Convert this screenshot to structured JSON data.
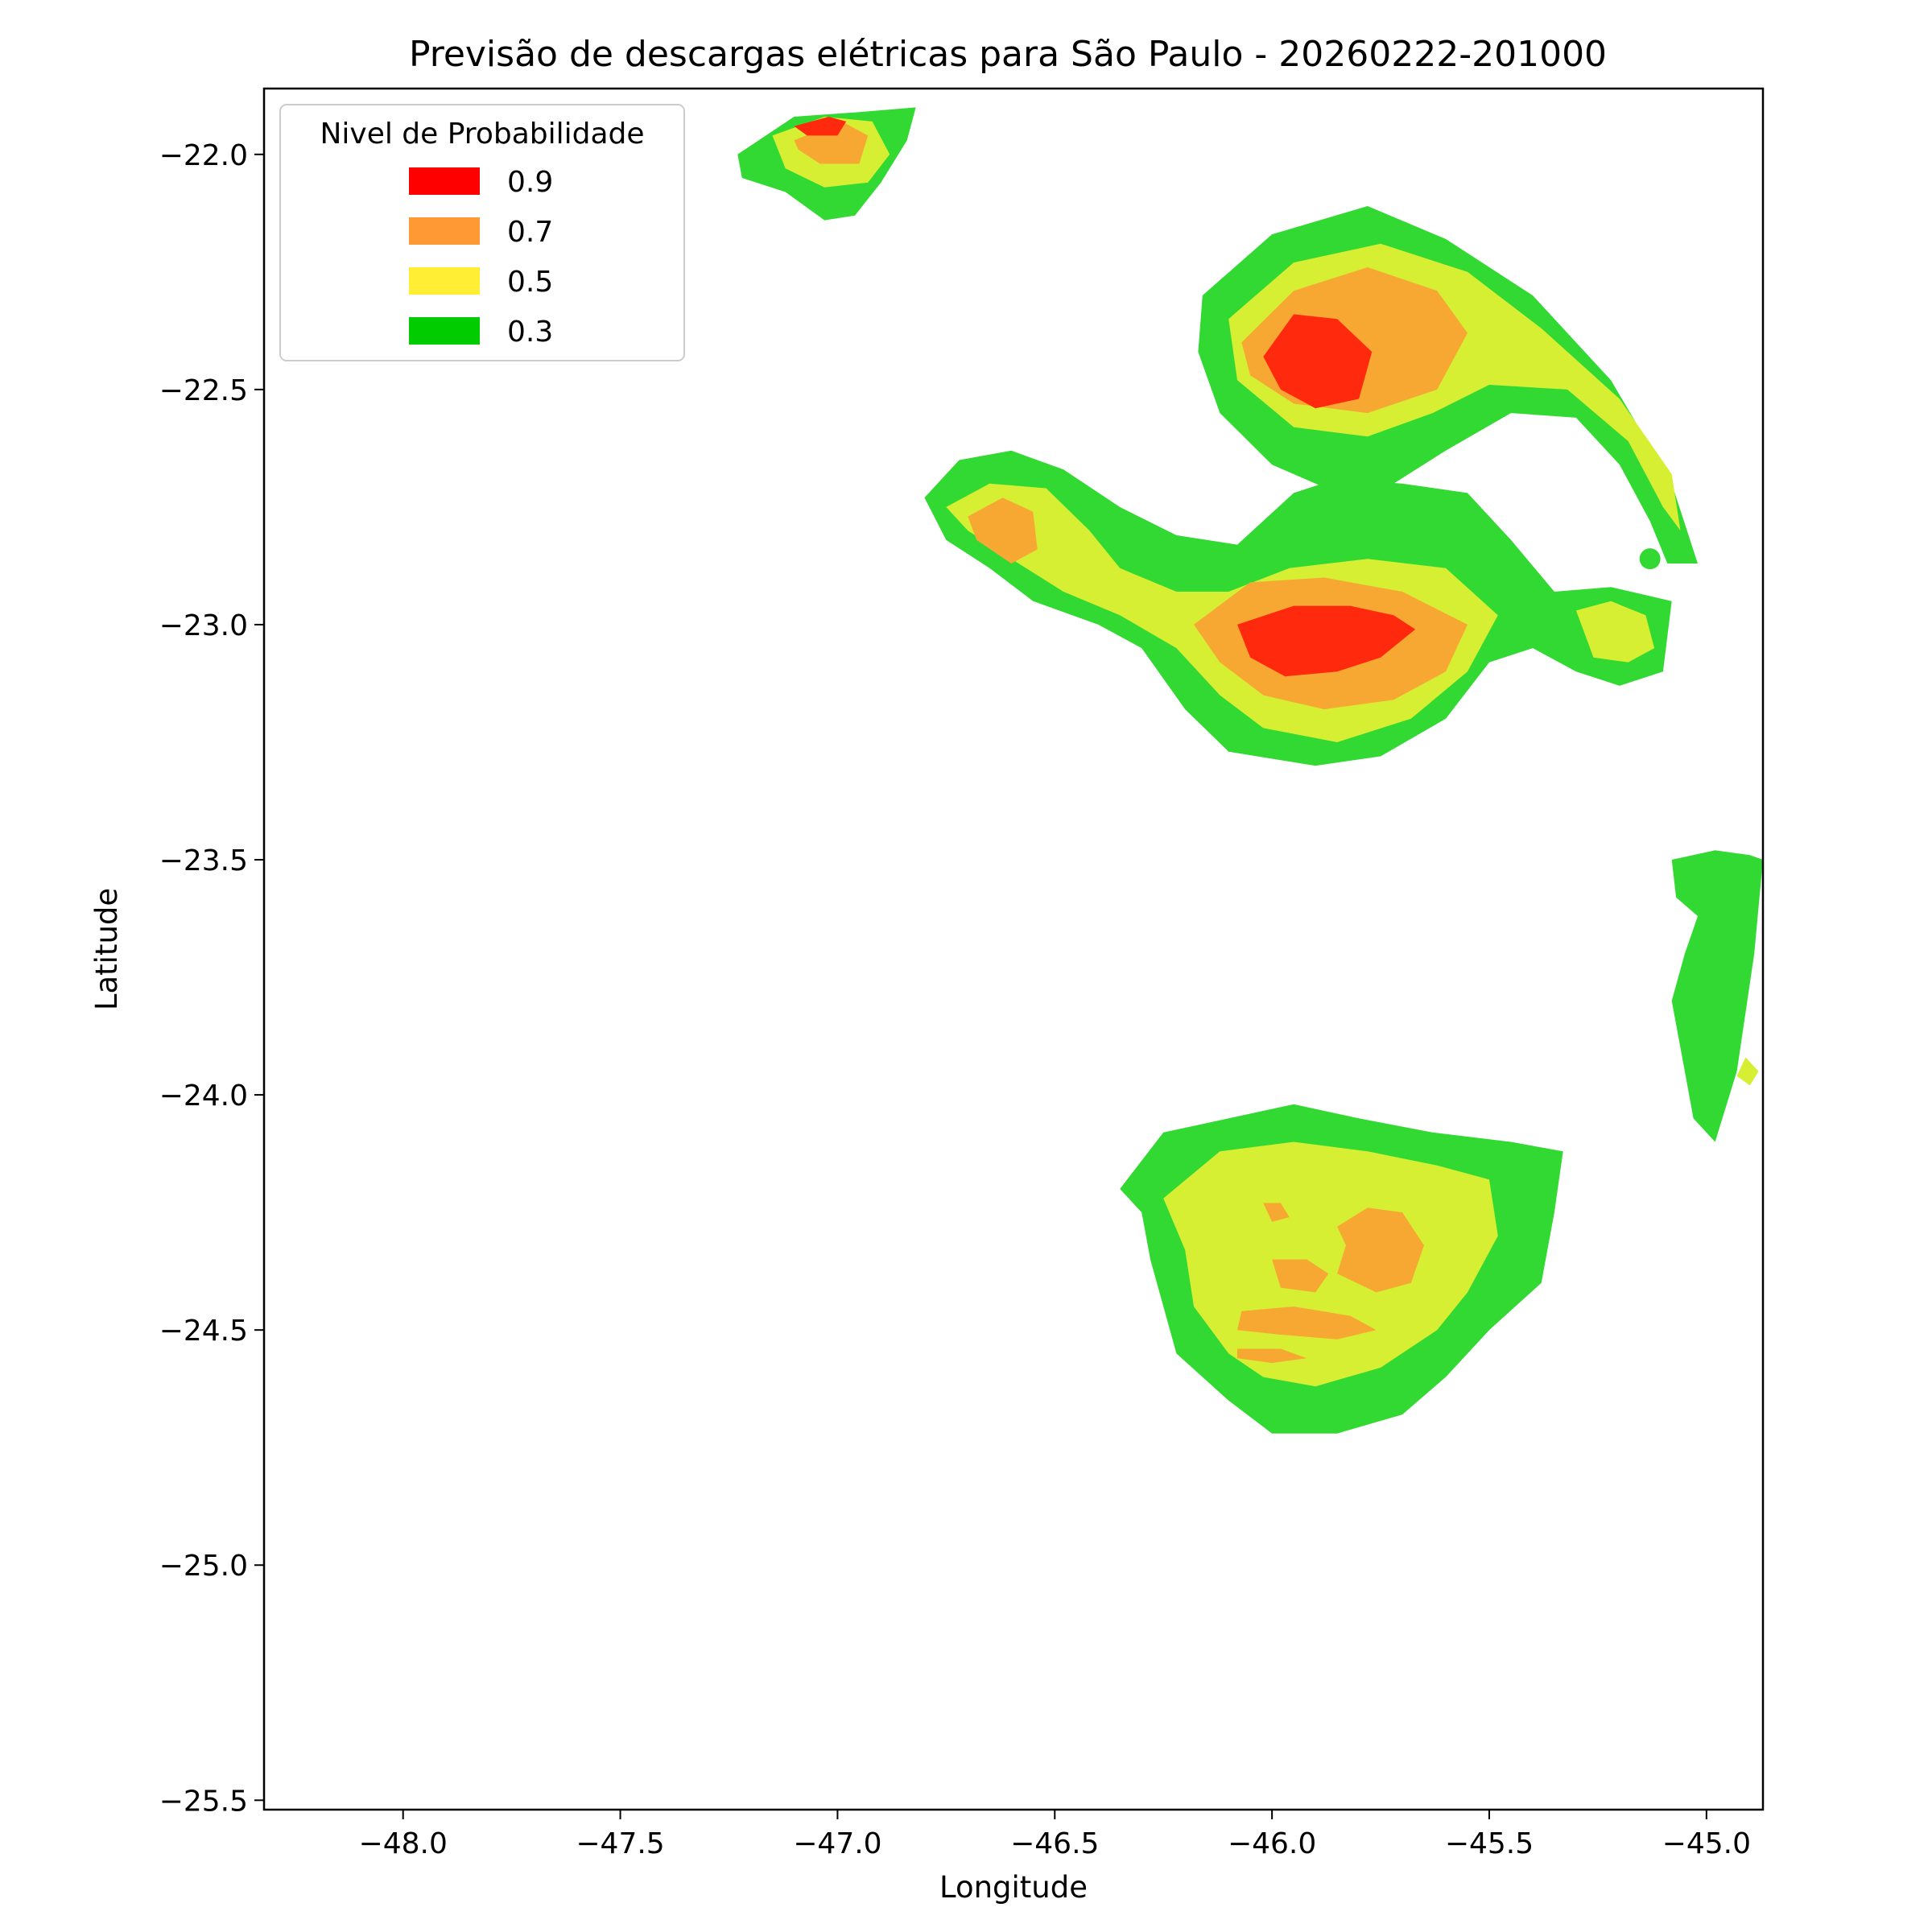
{
  "chart_data": {
    "type": "contour",
    "title": "Previsão de descargas elétricas para São Paulo - 20260222-201000",
    "xlabel": "Longitude",
    "ylabel": "Latitude",
    "xlim": [
      -48.32,
      -44.87
    ],
    "ylim": [
      -25.52,
      -21.86
    ],
    "x_ticks": [
      -48.0,
      -47.5,
      -47.0,
      -46.5,
      -46.0,
      -45.5,
      -45.0
    ],
    "x_tick_labels": [
      "−48.0",
      "−47.5",
      "−47.0",
      "−46.5",
      "−46.0",
      "−45.5",
      "−45.0"
    ],
    "y_ticks": [
      -22.0,
      -22.5,
      -23.0,
      -23.5,
      -24.0,
      -24.5,
      -25.0,
      -25.5
    ],
    "y_tick_labels": [
      "−22.0",
      "−22.5",
      "−23.0",
      "−23.5",
      "−24.0",
      "−24.5",
      "−25.0",
      "−25.5"
    ],
    "grid": false,
    "legend": {
      "title": "Nivel de Probabilidade",
      "placement": "top-left",
      "entries": [
        {
          "label": "0.9",
          "color": "#ff0000"
        },
        {
          "label": "0.7",
          "color": "#ff9933"
        },
        {
          "label": "0.5",
          "color": "#ffee33"
        },
        {
          "label": "0.3",
          "color": "#00cc00"
        }
      ]
    },
    "fill_colors": {
      "0.3": "#33d933",
      "0.5": "#d6ef33",
      "0.7": "#f7a833",
      "0.9": "#ff2a0d"
    },
    "regions": [
      {
        "level": "0.3",
        "points": [
          [
            -47.23,
            -22.0
          ],
          [
            -47.1,
            -21.92
          ],
          [
            -46.95,
            -21.91
          ],
          [
            -46.82,
            -21.9
          ],
          [
            -46.84,
            -21.97
          ],
          [
            -46.9,
            -22.06
          ],
          [
            -46.96,
            -22.13
          ],
          [
            -47.03,
            -22.14
          ],
          [
            -47.12,
            -22.08
          ],
          [
            -47.22,
            -22.05
          ]
        ]
      },
      {
        "level": "0.5",
        "points": [
          [
            -47.15,
            -21.96
          ],
          [
            -47.03,
            -21.92
          ],
          [
            -46.92,
            -21.93
          ],
          [
            -46.88,
            -22.0
          ],
          [
            -46.93,
            -22.06
          ],
          [
            -47.03,
            -22.07
          ],
          [
            -47.12,
            -22.03
          ]
        ]
      },
      {
        "level": "0.7",
        "points": [
          [
            -47.1,
            -21.97
          ],
          [
            -46.99,
            -21.93
          ],
          [
            -46.93,
            -21.96
          ],
          [
            -46.95,
            -22.02
          ],
          [
            -47.04,
            -22.02
          ],
          [
            -47.09,
            -21.99
          ]
        ]
      },
      {
        "level": "0.9",
        "points": [
          [
            -47.1,
            -21.94
          ],
          [
            -47.02,
            -21.92
          ],
          [
            -46.98,
            -21.93
          ],
          [
            -47.0,
            -21.96
          ],
          [
            -47.07,
            -21.96
          ]
        ]
      },
      {
        "level": "0.3",
        "points": [
          [
            -46.16,
            -22.3
          ],
          [
            -46.0,
            -22.17
          ],
          [
            -45.78,
            -22.11
          ],
          [
            -45.6,
            -22.18
          ],
          [
            -45.4,
            -22.3
          ],
          [
            -45.22,
            -22.48
          ],
          [
            -45.08,
            -22.7
          ],
          [
            -45.02,
            -22.87
          ],
          [
            -45.09,
            -22.87
          ],
          [
            -45.13,
            -22.78
          ],
          [
            -45.2,
            -22.66
          ],
          [
            -45.3,
            -22.56
          ],
          [
            -45.45,
            -22.55
          ],
          [
            -45.6,
            -22.63
          ],
          [
            -45.72,
            -22.7
          ],
          [
            -45.85,
            -22.72
          ],
          [
            -46.0,
            -22.66
          ],
          [
            -46.12,
            -22.55
          ],
          [
            -46.17,
            -22.42
          ]
        ]
      },
      {
        "level": "0.5",
        "points": [
          [
            -46.1,
            -22.35
          ],
          [
            -45.95,
            -22.23
          ],
          [
            -45.75,
            -22.19
          ],
          [
            -45.55,
            -22.25
          ],
          [
            -45.38,
            -22.37
          ],
          [
            -45.2,
            -22.52
          ],
          [
            -45.08,
            -22.68
          ],
          [
            -45.06,
            -22.8
          ],
          [
            -45.1,
            -22.75
          ],
          [
            -45.18,
            -22.61
          ],
          [
            -45.32,
            -22.5
          ],
          [
            -45.5,
            -22.49
          ],
          [
            -45.63,
            -22.55
          ],
          [
            -45.78,
            -22.6
          ],
          [
            -45.95,
            -22.58
          ],
          [
            -46.08,
            -22.48
          ]
        ]
      },
      {
        "level": "0.7",
        "points": [
          [
            -46.07,
            -22.4
          ],
          [
            -45.95,
            -22.29
          ],
          [
            -45.78,
            -22.24
          ],
          [
            -45.62,
            -22.29
          ],
          [
            -45.55,
            -22.38
          ],
          [
            -45.62,
            -22.5
          ],
          [
            -45.78,
            -22.55
          ],
          [
            -45.95,
            -22.53
          ],
          [
            -46.05,
            -22.47
          ]
        ]
      },
      {
        "level": "0.9",
        "points": [
          [
            -46.02,
            -22.43
          ],
          [
            -45.95,
            -22.34
          ],
          [
            -45.85,
            -22.35
          ],
          [
            -45.77,
            -22.42
          ],
          [
            -45.8,
            -22.52
          ],
          [
            -45.9,
            -22.54
          ],
          [
            -45.98,
            -22.5
          ]
        ]
      },
      {
        "level": "0.3",
        "points": [
          [
            -46.8,
            -22.73
          ],
          [
            -46.72,
            -22.65
          ],
          [
            -46.6,
            -22.63
          ],
          [
            -46.48,
            -22.67
          ],
          [
            -46.35,
            -22.75
          ],
          [
            -46.22,
            -22.81
          ],
          [
            -46.08,
            -22.83
          ],
          [
            -45.95,
            -22.72
          ],
          [
            -45.85,
            -22.69
          ],
          [
            -45.7,
            -22.7
          ],
          [
            -45.55,
            -22.72
          ],
          [
            -45.45,
            -22.82
          ],
          [
            -45.35,
            -22.93
          ],
          [
            -45.22,
            -22.92
          ],
          [
            -45.08,
            -22.95
          ],
          [
            -45.1,
            -23.1
          ],
          [
            -45.2,
            -23.13
          ],
          [
            -45.3,
            -23.1
          ],
          [
            -45.4,
            -23.05
          ],
          [
            -45.5,
            -23.08
          ],
          [
            -45.6,
            -23.2
          ],
          [
            -45.75,
            -23.28
          ],
          [
            -45.9,
            -23.3
          ],
          [
            -46.1,
            -23.27
          ],
          [
            -46.2,
            -23.18
          ],
          [
            -46.3,
            -23.05
          ],
          [
            -46.4,
            -23.0
          ],
          [
            -46.55,
            -22.95
          ],
          [
            -46.65,
            -22.88
          ],
          [
            -46.75,
            -22.82
          ]
        ]
      },
      {
        "level": "0.5",
        "points": [
          [
            -46.75,
            -22.75
          ],
          [
            -46.65,
            -22.7
          ],
          [
            -46.52,
            -22.71
          ],
          [
            -46.42,
            -22.8
          ],
          [
            -46.35,
            -22.88
          ],
          [
            -46.22,
            -22.93
          ],
          [
            -46.1,
            -22.93
          ],
          [
            -45.96,
            -22.88
          ],
          [
            -45.78,
            -22.86
          ],
          [
            -45.6,
            -22.88
          ],
          [
            -45.48,
            -22.98
          ],
          [
            -45.55,
            -23.1
          ],
          [
            -45.68,
            -23.2
          ],
          [
            -45.85,
            -23.25
          ],
          [
            -46.02,
            -23.22
          ],
          [
            -46.12,
            -23.15
          ],
          [
            -46.22,
            -23.05
          ],
          [
            -46.35,
            -22.98
          ],
          [
            -46.48,
            -22.93
          ],
          [
            -46.6,
            -22.86
          ],
          [
            -46.7,
            -22.8
          ]
        ]
      },
      {
        "level": "0.5",
        "points": [
          [
            -45.3,
            -22.97
          ],
          [
            -45.22,
            -22.95
          ],
          [
            -45.14,
            -22.98
          ],
          [
            -45.12,
            -23.05
          ],
          [
            -45.18,
            -23.08
          ],
          [
            -45.26,
            -23.07
          ]
        ]
      },
      {
        "level": "0.7",
        "points": [
          [
            -46.7,
            -22.77
          ],
          [
            -46.62,
            -22.73
          ],
          [
            -46.55,
            -22.76
          ],
          [
            -46.54,
            -22.84
          ],
          [
            -46.6,
            -22.87
          ],
          [
            -46.68,
            -22.82
          ]
        ]
      },
      {
        "level": "0.7",
        "points": [
          [
            -46.18,
            -23.0
          ],
          [
            -46.05,
            -22.91
          ],
          [
            -45.88,
            -22.9
          ],
          [
            -45.7,
            -22.93
          ],
          [
            -45.55,
            -23.0
          ],
          [
            -45.6,
            -23.1
          ],
          [
            -45.72,
            -23.16
          ],
          [
            -45.88,
            -23.18
          ],
          [
            -46.02,
            -23.15
          ],
          [
            -46.12,
            -23.08
          ]
        ]
      },
      {
        "level": "0.9",
        "points": [
          [
            -46.08,
            -23.0
          ],
          [
            -45.95,
            -22.96
          ],
          [
            -45.82,
            -22.96
          ],
          [
            -45.72,
            -22.98
          ],
          [
            -45.67,
            -23.01
          ],
          [
            -45.75,
            -23.07
          ],
          [
            -45.85,
            -23.1
          ],
          [
            -45.97,
            -23.11
          ],
          [
            -46.05,
            -23.07
          ]
        ]
      },
      {
        "level": "0.3",
        "points": [
          [
            -45.08,
            -23.5
          ],
          [
            -44.98,
            -23.48
          ],
          [
            -44.9,
            -23.49
          ],
          [
            -44.87,
            -23.5
          ],
          [
            -44.89,
            -23.7
          ],
          [
            -44.93,
            -23.95
          ],
          [
            -44.98,
            -24.1
          ],
          [
            -45.03,
            -24.05
          ],
          [
            -45.05,
            -23.95
          ],
          [
            -45.08,
            -23.8
          ],
          [
            -45.05,
            -23.7
          ],
          [
            -45.02,
            -23.62
          ],
          [
            -45.07,
            -23.58
          ]
        ]
      },
      {
        "level": "0.5",
        "points": [
          [
            -44.91,
            -23.92
          ],
          [
            -44.88,
            -23.95
          ],
          [
            -44.9,
            -23.98
          ],
          [
            -44.93,
            -23.96
          ]
        ]
      },
      {
        "level": "0.3",
        "points": [
          [
            -46.35,
            -24.2
          ],
          [
            -46.25,
            -24.08
          ],
          [
            -46.1,
            -24.05
          ],
          [
            -45.95,
            -24.02
          ],
          [
            -45.8,
            -24.05
          ],
          [
            -45.63,
            -24.08
          ],
          [
            -45.45,
            -24.1
          ],
          [
            -45.33,
            -24.12
          ],
          [
            -45.35,
            -24.25
          ],
          [
            -45.38,
            -24.4
          ],
          [
            -45.5,
            -24.5
          ],
          [
            -45.6,
            -24.6
          ],
          [
            -45.7,
            -24.68
          ],
          [
            -45.85,
            -24.72
          ],
          [
            -46.0,
            -24.72
          ],
          [
            -46.1,
            -24.65
          ],
          [
            -46.22,
            -24.55
          ],
          [
            -46.25,
            -24.45
          ],
          [
            -46.28,
            -24.35
          ],
          [
            -46.3,
            -24.25
          ]
        ]
      },
      {
        "level": "0.5",
        "points": [
          [
            -46.25,
            -24.22
          ],
          [
            -46.12,
            -24.12
          ],
          [
            -45.95,
            -24.1
          ],
          [
            -45.78,
            -24.12
          ],
          [
            -45.62,
            -24.15
          ],
          [
            -45.5,
            -24.18
          ],
          [
            -45.48,
            -24.3
          ],
          [
            -45.55,
            -24.42
          ],
          [
            -45.62,
            -24.5
          ],
          [
            -45.75,
            -24.58
          ],
          [
            -45.9,
            -24.62
          ],
          [
            -46.02,
            -24.6
          ],
          [
            -46.1,
            -24.55
          ],
          [
            -46.18,
            -24.45
          ],
          [
            -46.2,
            -24.33
          ]
        ]
      },
      {
        "level": "0.7",
        "points": [
          [
            -45.85,
            -24.28
          ],
          [
            -45.78,
            -24.24
          ],
          [
            -45.7,
            -24.25
          ],
          [
            -45.65,
            -24.32
          ],
          [
            -45.68,
            -24.4
          ],
          [
            -45.76,
            -24.42
          ],
          [
            -45.85,
            -24.38
          ],
          [
            -45.83,
            -24.32
          ]
        ]
      },
      {
        "level": "0.7",
        "points": [
          [
            -46.0,
            -24.35
          ],
          [
            -45.92,
            -24.35
          ],
          [
            -45.87,
            -24.38
          ],
          [
            -45.9,
            -24.42
          ],
          [
            -45.98,
            -24.41
          ]
        ]
      },
      {
        "level": "0.7",
        "points": [
          [
            -46.07,
            -24.46
          ],
          [
            -45.95,
            -24.45
          ],
          [
            -45.82,
            -24.47
          ],
          [
            -45.76,
            -24.5
          ],
          [
            -45.85,
            -24.52
          ],
          [
            -45.98,
            -24.51
          ],
          [
            -46.08,
            -24.5
          ]
        ]
      },
      {
        "level": "0.7",
        "points": [
          [
            -46.08,
            -24.54
          ],
          [
            -45.98,
            -24.54
          ],
          [
            -45.92,
            -24.56
          ],
          [
            -46.0,
            -24.57
          ],
          [
            -46.08,
            -24.56
          ]
        ]
      },
      {
        "level": "0.7",
        "points": [
          [
            -46.02,
            -24.23
          ],
          [
            -45.98,
            -24.23
          ],
          [
            -45.96,
            -24.26
          ],
          [
            -46.0,
            -24.27
          ]
        ]
      }
    ],
    "dots": [
      {
        "level": "0.3",
        "x": -45.13,
        "y": -22.86
      },
      {
        "level": "0.5",
        "x": -45.58,
        "y": -24.19
      }
    ]
  }
}
